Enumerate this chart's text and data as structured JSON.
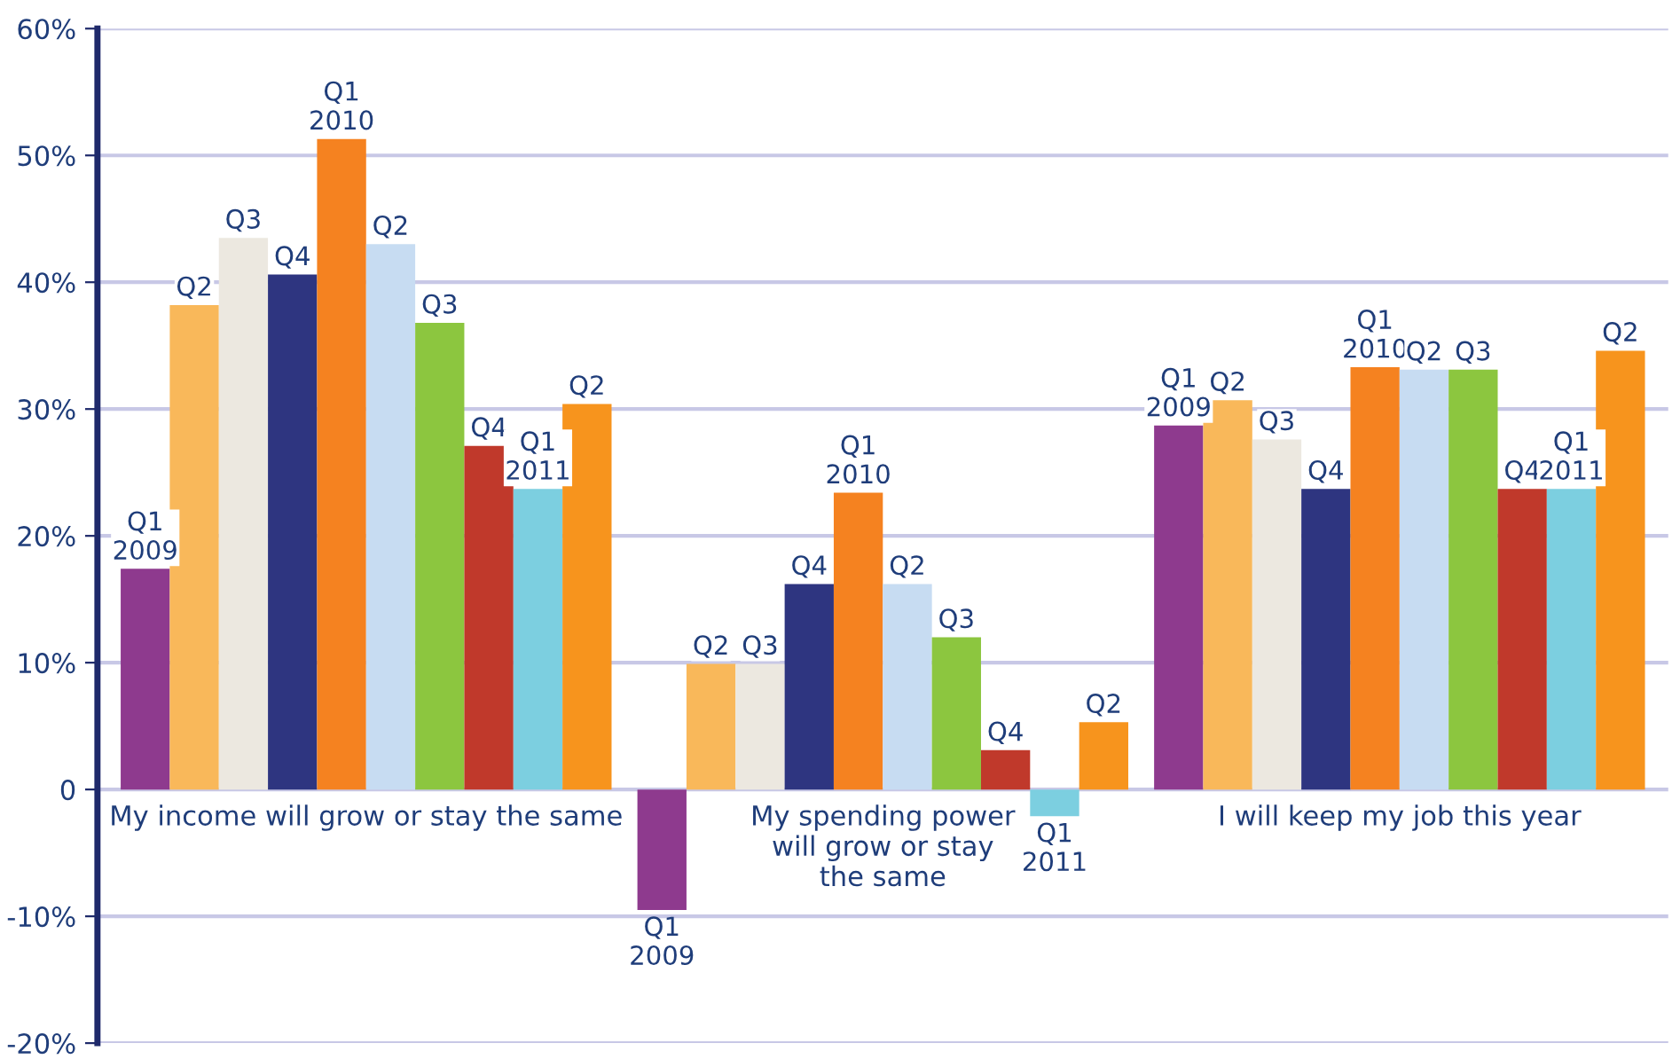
{
  "chart_data": {
    "type": "bar",
    "categories": [
      "My income will grow or stay the same",
      "My spending power\nwill grow or stay\nthe same",
      "I will keep my job this year"
    ],
    "series": [
      {
        "name": "Q1\n2009",
        "color": "#8e3a8e",
        "values": [
          17.4,
          -9.5,
          28.7
        ]
      },
      {
        "name": "Q2",
        "color": "#f9b85a",
        "values": [
          38.2,
          9.9,
          30.7
        ]
      },
      {
        "name": "Q3",
        "color": "#ece8e0",
        "values": [
          43.5,
          9.9,
          27.6
        ]
      },
      {
        "name": "Q4",
        "color": "#2e3580",
        "values": [
          40.6,
          16.2,
          23.7
        ]
      },
      {
        "name": "Q1\n2010",
        "color": "#f58220",
        "values": [
          51.3,
          23.4,
          33.3
        ]
      },
      {
        "name": "Q2",
        "color": "#c7dcf2",
        "values": [
          43.0,
          16.2,
          33.1
        ]
      },
      {
        "name": "Q3",
        "color": "#8cc63f",
        "values": [
          36.8,
          12.0,
          33.1
        ]
      },
      {
        "name": "Q4",
        "color": "#c0392b",
        "values": [
          27.1,
          3.1,
          23.7
        ]
      },
      {
        "name": "Q1\n2011",
        "color": "#7ccfe0",
        "values": [
          23.7,
          -2.1,
          23.7
        ]
      },
      {
        "name": "Q2",
        "color": "#f7941d",
        "values": [
          30.4,
          5.3,
          34.6
        ]
      }
    ],
    "ylim": [
      -20,
      60
    ],
    "yticks": [
      {
        "value": -20,
        "label": "-20%"
      },
      {
        "value": -10,
        "label": "-10%"
      },
      {
        "value": 0,
        "label": "0"
      },
      {
        "value": 10,
        "label": "10%"
      },
      {
        "value": 20,
        "label": "20%"
      },
      {
        "value": 30,
        "label": "30%"
      },
      {
        "value": 40,
        "label": "40%"
      },
      {
        "value": 50,
        "label": "50%"
      },
      {
        "value": 60,
        "label": "60%"
      }
    ],
    "grid": "y",
    "legend": false
  }
}
